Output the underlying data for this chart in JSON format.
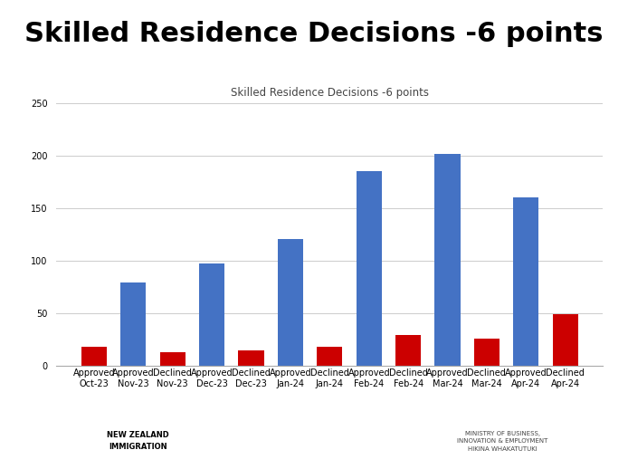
{
  "main_title": "Skilled Residence Decisions -6 points",
  "chart_subtitle": "Skilled Residence Decisions -6 points",
  "categories": [
    "Approved\nOct-23",
    "Approved\nNov-23",
    "Declined\nNov-23",
    "Approved\nDec-23",
    "Declined\nDec-23",
    "Approved\nJan-24",
    "Declined\nJan-24",
    "Approved\nFeb-24",
    "Declined\nFeb-24",
    "Approved\nMar-24",
    "Declined\nMar-24",
    "Approved\nApr-24",
    "Declined\nApr-24"
  ],
  "values": [
    18,
    79,
    13,
    97,
    15,
    121,
    18,
    185,
    29,
    202,
    26,
    160,
    49
  ],
  "bar_colors": [
    "#cc0000",
    "#4472c4",
    "#cc0000",
    "#4472c4",
    "#cc0000",
    "#4472c4",
    "#cc0000",
    "#4472c4",
    "#cc0000",
    "#4472c4",
    "#cc0000",
    "#4472c4",
    "#cc0000"
  ],
  "ylim": [
    0,
    250
  ],
  "yticks": [
    0,
    50,
    100,
    150,
    200,
    250
  ],
  "background_color": "#ffffff",
  "main_title_fontsize": 22,
  "subtitle_fontsize": 8.5,
  "tick_fontsize": 7,
  "grid_color": "#cccccc",
  "footer_bg": "#e8e8e8",
  "nz_text_left": "NEW ZEALAND\nIMMIGRATION",
  "ministry_text_right": "MINISTRY OF BUSINESS,\nINNOVATION & EMPLOYMENT\nHIKINA WHAKATUTUKI"
}
